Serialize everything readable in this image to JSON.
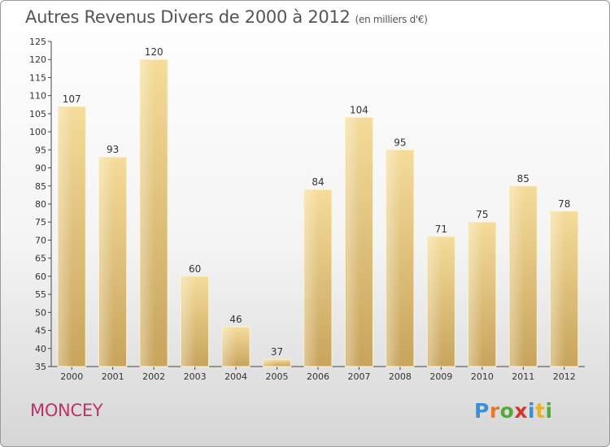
{
  "header": {
    "title": "Autres Revenus Divers de 2000 à 2012",
    "unit": "(en milliers d'€)"
  },
  "footer": {
    "commune": "MONCEY",
    "logo_letters": [
      "P",
      "r",
      "o",
      "x",
      "i",
      "t",
      "i"
    ],
    "logo_colors": [
      "#3a8fd6",
      "#e8792a",
      "#55a83a",
      "#d8342c",
      "#3a8fd6",
      "#e8b321",
      "#55a83a"
    ]
  },
  "colors": {
    "bar_light": "#f5dc9a",
    "bar_dark": "#c8a45c",
    "title": "#555555",
    "commune": "#c0306a"
  },
  "chart_data": {
    "type": "bar",
    "title": "Autres Revenus Divers de 2000 à 2012",
    "subtitle": "(en milliers d'€)",
    "categories": [
      "2000",
      "2001",
      "2002",
      "2003",
      "2004",
      "2005",
      "2006",
      "2007",
      "2008",
      "2009",
      "2010",
      "2011",
      "2012"
    ],
    "values": [
      107,
      93,
      120,
      60,
      46,
      37,
      84,
      104,
      95,
      71,
      75,
      85,
      78
    ],
    "ylim": [
      35,
      125
    ],
    "yticks": [
      35,
      40,
      45,
      50,
      55,
      60,
      65,
      70,
      75,
      80,
      85,
      90,
      95,
      100,
      105,
      110,
      115,
      120,
      125
    ],
    "grid": false,
    "xlabel": "",
    "ylabel": ""
  }
}
